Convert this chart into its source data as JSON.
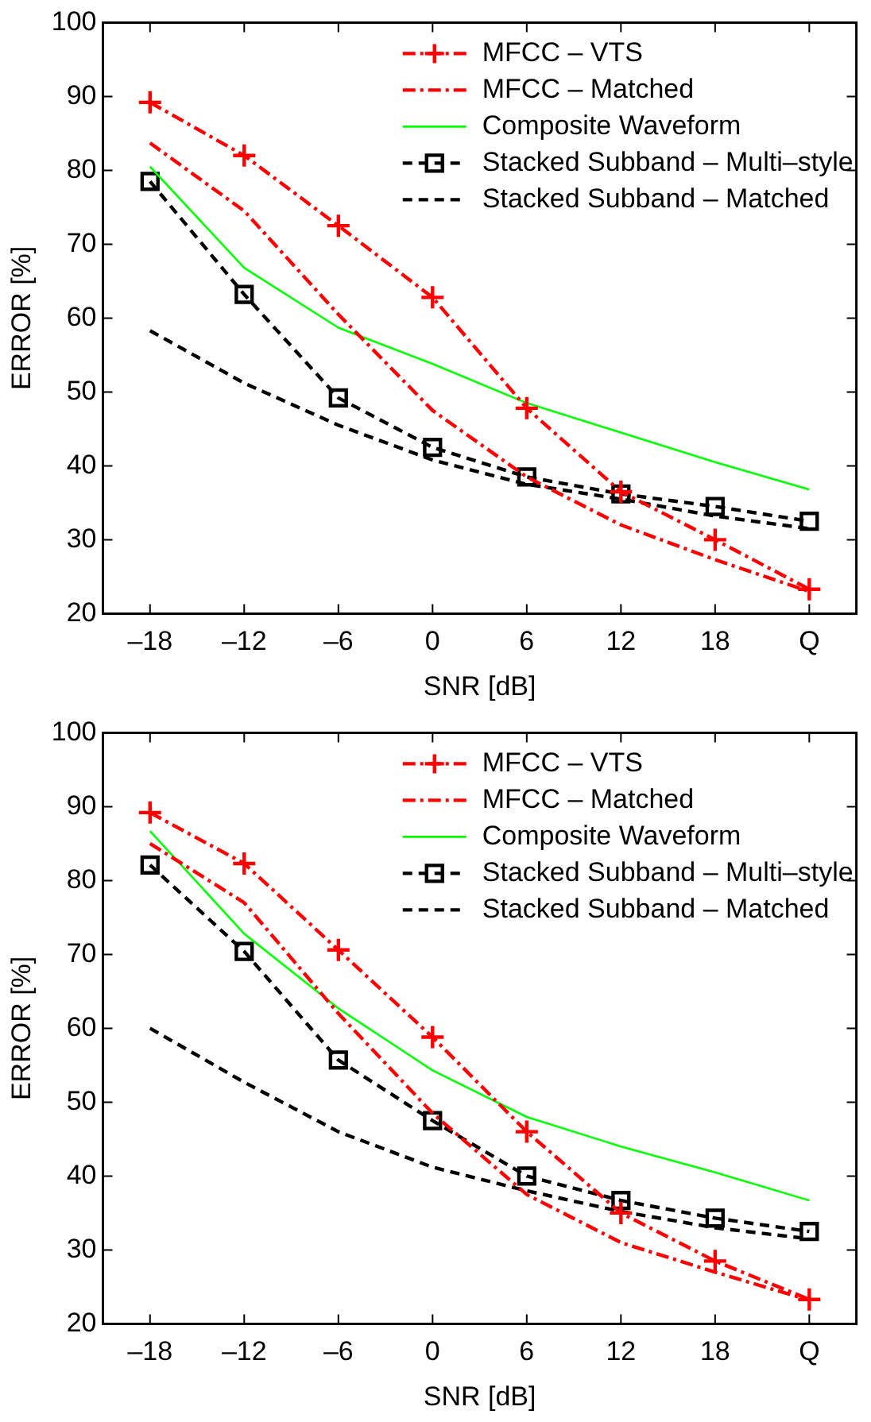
{
  "chart_data": [
    {
      "type": "line",
      "xlabel": "SNR [dB]",
      "ylabel": "ERROR [%]",
      "categories": [
        "–18",
        "–12",
        "–6",
        "0",
        "6",
        "12",
        "18",
        "Q"
      ],
      "ylim": [
        20,
        100
      ],
      "yticks": [
        20,
        30,
        40,
        50,
        60,
        70,
        80,
        90,
        100
      ],
      "grid": false,
      "legend": "top right",
      "series": [
        {
          "name": "MFCC – VTS",
          "color": "#ff0000",
          "marker": "cross",
          "line_style": "dashdot",
          "values": [
            89.2,
            82,
            72.5,
            62.8,
            47.8,
            36.5,
            30,
            23.3
          ]
        },
        {
          "name": "MFCC – Matched",
          "color": "#ff0000",
          "marker": "none",
          "line_style": "dashdot",
          "values": [
            83.7,
            74.5,
            60.5,
            47.5,
            38.5,
            32,
            27.3,
            23
          ]
        },
        {
          "name": "Composite Waveform",
          "color": "#00ff00",
          "marker": "none",
          "line_style": "solid",
          "values": [
            80.5,
            66.8,
            58.7,
            53.8,
            48.5,
            44.5,
            40.5,
            36.8
          ]
        },
        {
          "name": "Stacked Subband – Multi–style",
          "color": "#000000",
          "marker": "square",
          "line_style": "dashed",
          "values": [
            78.5,
            63.2,
            49.2,
            42.5,
            38.5,
            36.2,
            34.5,
            32.5
          ]
        },
        {
          "name": "Stacked Subband – Matched",
          "color": "#000000",
          "marker": "none",
          "line_style": "dashed",
          "values": [
            58.3,
            51.2,
            45.5,
            40.8,
            37.5,
            35.5,
            33.2,
            31.5
          ]
        }
      ]
    },
    {
      "type": "line",
      "xlabel": "SNR [dB]",
      "ylabel": "ERROR [%]",
      "categories": [
        "–18",
        "–12",
        "–6",
        "0",
        "6",
        "12",
        "18",
        "Q"
      ],
      "ylim": [
        20,
        100
      ],
      "yticks": [
        20,
        30,
        40,
        50,
        60,
        70,
        80,
        90,
        100
      ],
      "grid": false,
      "legend": "top right",
      "series": [
        {
          "name": "MFCC – VTS",
          "color": "#ff0000",
          "marker": "cross",
          "line_style": "dashdot",
          "values": [
            89.2,
            82.3,
            70.6,
            58.8,
            46,
            35,
            28.5,
            23.3
          ]
        },
        {
          "name": "MFCC – Matched",
          "color": "#ff0000",
          "marker": "none",
          "line_style": "dashdot",
          "values": [
            85,
            77,
            62,
            48.5,
            37.5,
            31,
            27,
            23.2
          ]
        },
        {
          "name": "Composite Waveform",
          "color": "#00ff00",
          "marker": "none",
          "line_style": "solid",
          "values": [
            86.7,
            72.8,
            62.7,
            54.3,
            48,
            44,
            40.5,
            36.7
          ]
        },
        {
          "name": "Stacked Subband – Multi–style",
          "color": "#000000",
          "marker": "square",
          "line_style": "dashed",
          "values": [
            82.1,
            70.4,
            55.7,
            47.5,
            40,
            36.7,
            34.3,
            32.5
          ]
        },
        {
          "name": "Stacked Subband – Matched",
          "color": "#000000",
          "marker": "none",
          "line_style": "dashed",
          "values": [
            60,
            52.7,
            46,
            41.2,
            38,
            35.2,
            33,
            31.5
          ]
        }
      ]
    }
  ]
}
